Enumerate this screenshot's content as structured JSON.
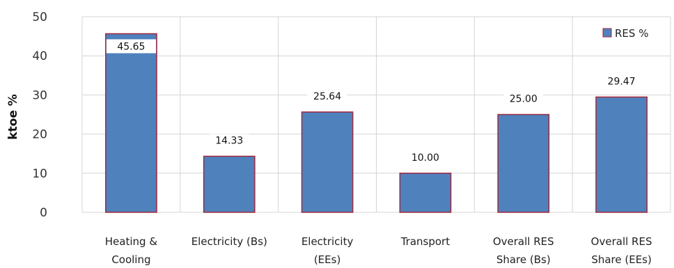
{
  "chart_data": {
    "type": "bar",
    "categories": [
      [
        "Heating &",
        "Cooling"
      ],
      [
        "Electricity (Bs)"
      ],
      [
        "Electricity",
        "(EEs)"
      ],
      [
        "Transport"
      ],
      [
        "Overall RES",
        "Share (Bs)"
      ],
      [
        "Overall RES",
        "Share (EEs)"
      ]
    ],
    "series": [
      {
        "name": "RES %",
        "values": [
          45.65,
          14.33,
          25.64,
          10.0,
          25.0,
          29.47
        ],
        "color": "#4F81BD",
        "edge_color": "#A0283C"
      }
    ],
    "data_labels": [
      "45.65",
      "14.33",
      "25.64",
      "10.00",
      "25.00",
      "29.47"
    ],
    "ylabel": "ktoe %",
    "ylim": [
      0,
      50
    ],
    "yticks": [
      "0",
      "10",
      "20",
      "30",
      "40",
      "50"
    ],
    "grid": true,
    "legend": "top-right"
  }
}
